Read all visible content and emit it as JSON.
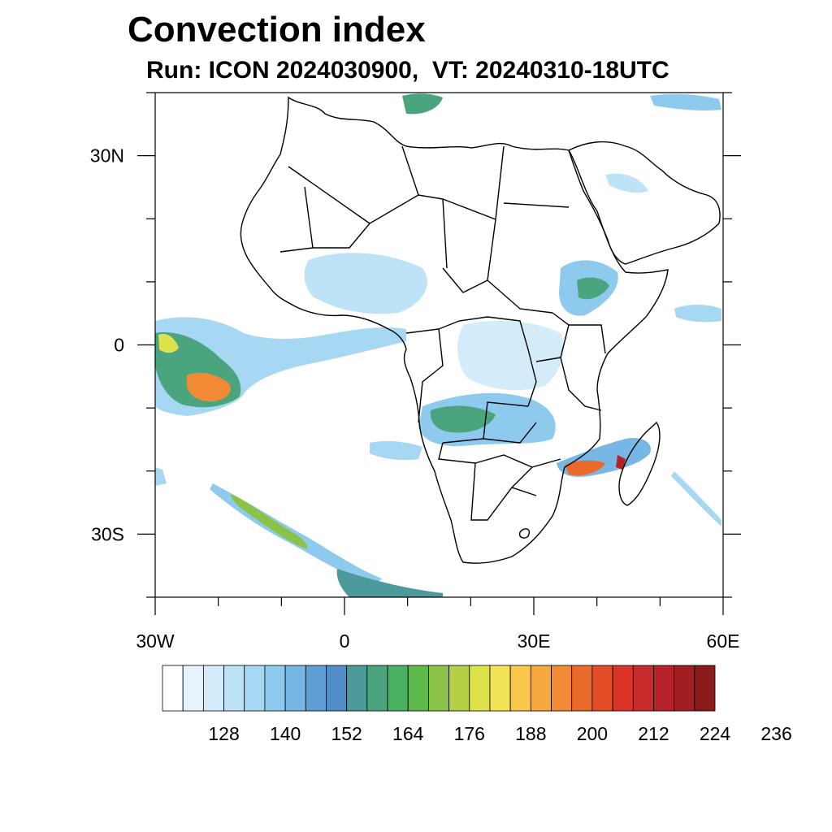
{
  "title": "Convection index",
  "subtitle": "Run: ICON 2024030900,  VT: 20240310-18UTC",
  "map": {
    "lon_range": [
      -30,
      60
    ],
    "lat_range": [
      -40,
      40
    ],
    "x_ticks": [
      {
        "lon": -30,
        "label": "30W"
      },
      {
        "lon": 0,
        "label": "0"
      },
      {
        "lon": 30,
        "label": "30E"
      },
      {
        "lon": 60,
        "label": "60E"
      }
    ],
    "y_ticks": [
      {
        "lat": 30,
        "label": "30N"
      },
      {
        "lat": 0,
        "label": "0"
      },
      {
        "lat": -30,
        "label": "30S"
      }
    ],
    "minor_lon_step": 10,
    "minor_lat_step": 10
  },
  "colorbar": {
    "colors": [
      "#ffffff",
      "#e8f4fc",
      "#d4ecf9",
      "#bfe3f6",
      "#a6d8f3",
      "#8dcaee",
      "#76b7e4",
      "#5f9fd6",
      "#4f8ec8",
      "#4c9b9a",
      "#4aa57e",
      "#4ab062",
      "#5cb94a",
      "#8bc34a",
      "#b4d145",
      "#dde24b",
      "#f3e359",
      "#f8c84c",
      "#f7a93f",
      "#f18a34",
      "#ea6a2b",
      "#e24c27",
      "#d93427",
      "#c72a2b",
      "#b52328",
      "#a01d22",
      "#8b1a1a"
    ],
    "labels": [
      "128",
      "140",
      "152",
      "164",
      "176",
      "188",
      "200",
      "212",
      "224",
      "236"
    ]
  },
  "icons": {
    "title_map": "convection-index-map"
  }
}
